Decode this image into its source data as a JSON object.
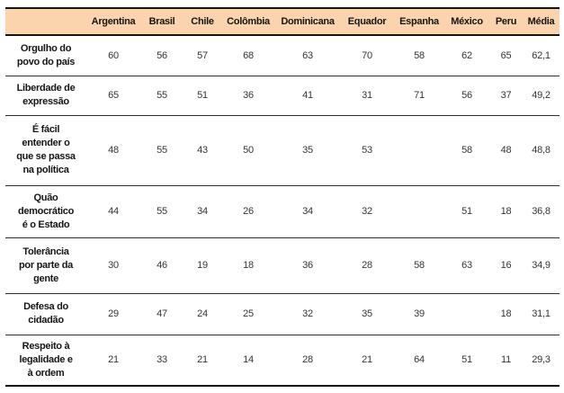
{
  "chart_data": {
    "type": "table",
    "title": "",
    "columns": [
      "Argentina",
      "Brasil",
      "Chile",
      "Colômbia",
      "Dominicana",
      "Equador",
      "Espanha",
      "México",
      "Peru",
      "Média"
    ],
    "rows": [
      {
        "label": "Orgulho do\npovo do país",
        "values": [
          60,
          56,
          57,
          68,
          63,
          70,
          58,
          62,
          65,
          "62,1"
        ]
      },
      {
        "label": "Liberdade de\nexpressão",
        "values": [
          65,
          55,
          51,
          36,
          41,
          31,
          71,
          56,
          37,
          "49,2"
        ]
      },
      {
        "label": "É fácil\nentender o\nque se passa\nna política",
        "values": [
          48,
          55,
          43,
          50,
          35,
          53,
          "",
          58,
          48,
          "48,8"
        ]
      },
      {
        "label": "Quão\ndemocrático\né o Estado",
        "values": [
          44,
          55,
          34,
          26,
          34,
          32,
          "",
          51,
          18,
          "36,8"
        ]
      },
      {
        "label": "Tolerância\npor parte da\ngente",
        "values": [
          30,
          46,
          19,
          18,
          36,
          28,
          58,
          63,
          16,
          "34,9"
        ]
      },
      {
        "label": "Defesa do\ncidadão",
        "values": [
          29,
          47,
          24,
          25,
          32,
          35,
          39,
          "",
          18,
          "31,1"
        ]
      },
      {
        "label": "Respeito à\nlegalidade e\nà ordem",
        "values": [
          21,
          33,
          21,
          14,
          28,
          21,
          64,
          51,
          11,
          "29,3"
        ]
      }
    ],
    "header_bg_color": "#FBD3AC",
    "border_color": "#151515",
    "layout": {
      "grid": "horizontal-rules-only",
      "legend": "none"
    }
  }
}
